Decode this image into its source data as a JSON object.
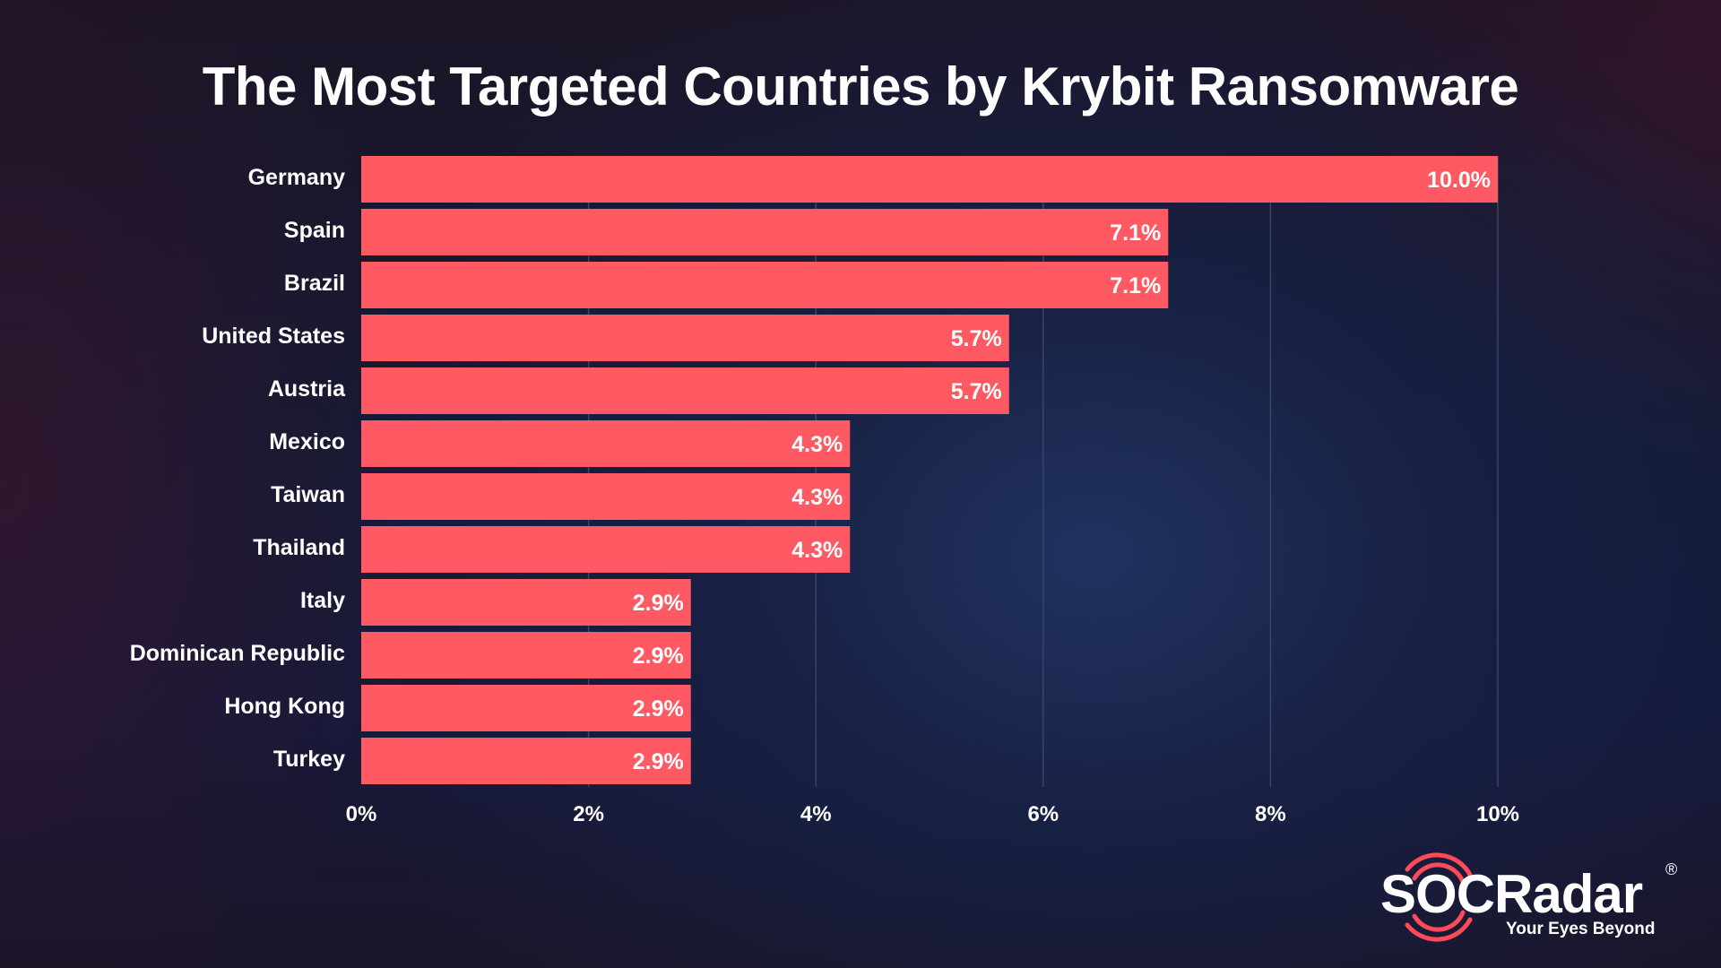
{
  "chart_data": {
    "type": "bar",
    "orientation": "horizontal",
    "title": "The Most Targeted Countries by Krybit Ransomware",
    "xlabel": "",
    "ylabel": "",
    "categories": [
      "Germany",
      "Spain",
      "Brazil",
      "United States",
      "Austria",
      "Mexico",
      "Taiwan",
      "Thailand",
      "Italy",
      "Dominican Republic",
      "Hong Kong",
      "Turkey"
    ],
    "values": [
      10.0,
      7.1,
      7.1,
      5.7,
      5.7,
      4.3,
      4.3,
      4.3,
      2.9,
      2.9,
      2.9,
      2.9
    ],
    "value_labels": [
      "10.0%",
      "7.1%",
      "7.1%",
      "5.7%",
      "5.7%",
      "4.3%",
      "4.3%",
      "4.3%",
      "2.9%",
      "2.9%",
      "2.9%",
      "2.9%"
    ],
    "xlim": [
      0,
      10
    ],
    "x_ticks": [
      0,
      2,
      4,
      6,
      8,
      10
    ],
    "x_tick_labels": [
      "0%",
      "2%",
      "4%",
      "6%",
      "8%",
      "10%"
    ],
    "grid": "vertical",
    "legend": "none",
    "bar_color": "#ff5a63"
  },
  "brand": {
    "name": "SOCRadar",
    "registered_mark": "®",
    "tagline": "Your Eyes Beyond",
    "accent_color": "#ff4a5a"
  },
  "colors": {
    "text": "#ffffff",
    "gridline": "#3a4466"
  }
}
